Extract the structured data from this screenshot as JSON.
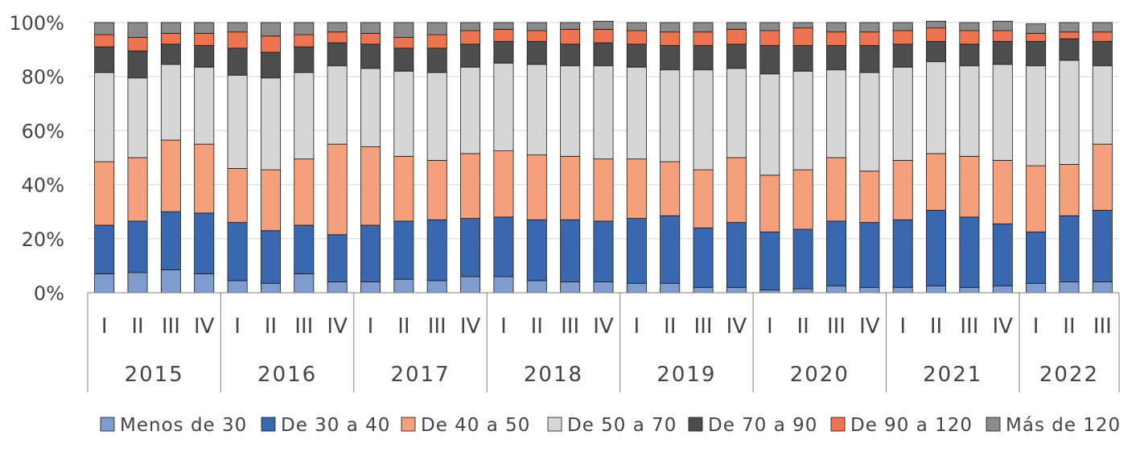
{
  "chart_data": {
    "type": "bar",
    "stacked": true,
    "percent": true,
    "title": "",
    "xlabel": "",
    "ylabel": "",
    "ylim": [
      0,
      100
    ],
    "y_ticks": [
      "0%",
      "20%",
      "40%",
      "60%",
      "80%",
      "100%"
    ],
    "grid": "horizontal",
    "legend_position": "bottom",
    "groups": [
      {
        "year": "2015",
        "quarters": [
          "I",
          "II",
          "III",
          "IV"
        ]
      },
      {
        "year": "2016",
        "quarters": [
          "I",
          "II",
          "III",
          "IV"
        ]
      },
      {
        "year": "2017",
        "quarters": [
          "I",
          "II",
          "III",
          "IV"
        ]
      },
      {
        "year": "2018",
        "quarters": [
          "I",
          "II",
          "III",
          "IV"
        ]
      },
      {
        "year": "2019",
        "quarters": [
          "I",
          "II",
          "III",
          "IV"
        ]
      },
      {
        "year": "2020",
        "quarters": [
          "I",
          "II",
          "III",
          "IV"
        ]
      },
      {
        "year": "2021",
        "quarters": [
          "I",
          "II",
          "III",
          "IV"
        ]
      },
      {
        "year": "2022",
        "quarters": [
          "I",
          "II",
          "III"
        ]
      }
    ],
    "series": [
      {
        "name": "Menos de 30",
        "color": "#7f9ccf",
        "values": [
          7,
          7.5,
          8.5,
          7,
          4.5,
          3.5,
          7,
          4,
          4,
          5,
          4.5,
          6,
          6,
          4.5,
          4,
          4,
          3.5,
          3.5,
          2,
          2,
          1,
          1.5,
          2.5,
          2,
          2,
          2.5,
          2,
          2.5,
          3.5,
          4,
          4
        ]
      },
      {
        "name": "De 30 a 40",
        "color": "#3a68b0",
        "values": [
          18,
          19,
          21.5,
          22.5,
          21.5,
          19.5,
          18,
          17.5,
          21,
          21.5,
          22.5,
          21.5,
          22,
          22.5,
          23,
          22.5,
          24,
          25,
          22,
          24,
          21.5,
          22,
          24,
          24,
          25,
          28,
          26,
          23,
          19,
          24.5,
          26.5
        ]
      },
      {
        "name": "De 40 a 50",
        "color": "#f4a07c",
        "values": [
          23.5,
          23.5,
          26.5,
          25.5,
          20,
          22.5,
          24.5,
          33.5,
          29,
          24,
          22,
          24,
          24.5,
          24,
          23.5,
          23,
          22,
          20,
          21.5,
          24,
          21,
          22,
          23.5,
          19,
          22,
          21,
          22.5,
          23.5,
          24.5,
          19,
          24.5
        ]
      },
      {
        "name": "De 50 a 70",
        "color": "#d6d6d6",
        "values": [
          33,
          29.5,
          28,
          28.5,
          34.5,
          34,
          32,
          29,
          29,
          31.5,
          32.5,
          32,
          32.5,
          33.5,
          33.5,
          34.5,
          34,
          34,
          37,
          33,
          37.5,
          36.5,
          32.5,
          36.5,
          34.5,
          34,
          33.5,
          35.5,
          37,
          38.5,
          29
        ]
      },
      {
        "name": "De 70 a 90",
        "color": "#4d4d4d",
        "values": [
          9.5,
          10,
          7.5,
          8,
          10,
          9.5,
          9.5,
          8.5,
          9,
          8.5,
          9,
          8.5,
          8,
          8.5,
          8,
          8.5,
          8.5,
          9,
          9,
          9,
          10.5,
          9.5,
          9,
          10,
          8.5,
          7.5,
          8,
          8.5,
          9,
          8,
          9
        ]
      },
      {
        "name": "De 90 a 120",
        "color": "#ee7350",
        "values": [
          4.5,
          5,
          4,
          4.5,
          6,
          6,
          4.5,
          4,
          4,
          4,
          5,
          5,
          4.5,
          4,
          5.5,
          5,
          5,
          5,
          5,
          5.5,
          5.5,
          6.5,
          5,
          5,
          5,
          5,
          5,
          4,
          3,
          2.5,
          3.5
        ]
      },
      {
        "name": "Más de 120",
        "color": "#8a8a8a",
        "values": [
          4.5,
          5.5,
          4,
          4,
          3.5,
          5,
          4.5,
          3.5,
          4,
          5.5,
          4.5,
          3,
          2.5,
          3,
          2.5,
          3,
          3,
          3.5,
          3.5,
          2.5,
          3,
          2,
          3.5,
          3.5,
          3,
          2.5,
          3,
          3.5,
          3.5,
          3.5,
          3.5
        ]
      }
    ]
  }
}
